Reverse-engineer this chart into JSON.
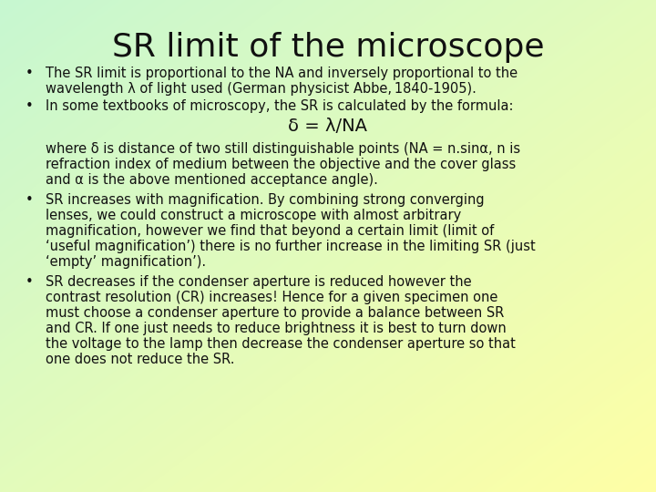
{
  "title": "SR limit of the microscope",
  "title_color": "#111111",
  "title_fontsize": 26,
  "body_fontsize": 10.5,
  "formula_fontsize": 14,
  "text_color": "#111111",
  "grad_tl": [
    0.78,
    0.97,
    0.82
  ],
  "grad_br": [
    1.0,
    1.0,
    0.65
  ],
  "bullet1_line1": "The SR limit is proportional to the NA and inversely proportional to the",
  "bullet1_line2": "wavelength λ of light used (German physicist Abbe, 1840-1905).",
  "bullet2": "In some textbooks of microscopy, the SR is calculated by the formula:",
  "formula": "δ = λ/NA",
  "formula_sub_line1": "where δ is distance of two still distinguishable points (NA = n.sinα, n is",
  "formula_sub_line2": "refraction index of medium between the objective and the cover glass",
  "formula_sub_line3": "and α is the above mentioned acceptance angle).",
  "bullet3_line1": "SR increases with magnification. By combining strong converging",
  "bullet3_line2": "lenses, we could construct a microscope with almost arbitrary",
  "bullet3_line3": "magnification, however we find that beyond a certain limit (limit of",
  "bullet3_line4": "‘useful magnification’) there is no further increase in the limiting SR (just",
  "bullet3_line5": "‘empty’ magnification’).",
  "bullet4_line1": "SR decreases if the condenser aperture is reduced however the",
  "bullet4_line2": "contrast resolution (CR) increases! Hence for a given specimen one",
  "bullet4_line3": "must choose a condenser aperture to provide a balance between SR",
  "bullet4_line4": "and CR. If one just needs to reduce brightness it is best to turn down",
  "bullet4_line5": "the voltage to the lamp then decrease the condenser aperture so that",
  "bullet4_line6": "one does not reduce the SR."
}
